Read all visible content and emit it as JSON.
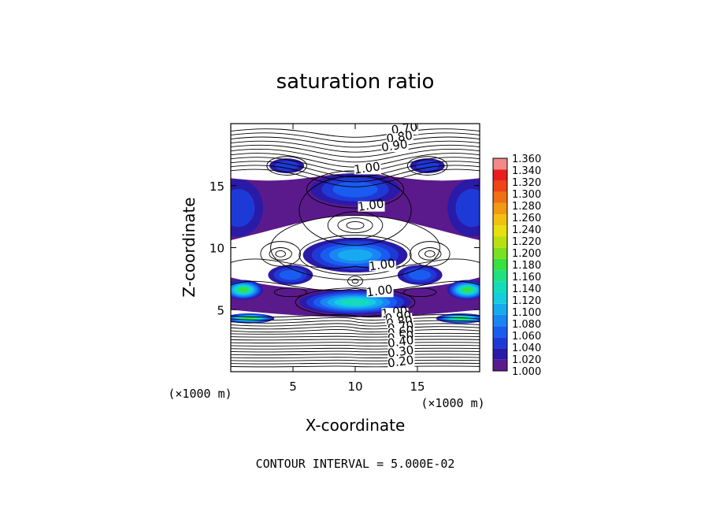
{
  "chart_data": {
    "type": "contour",
    "title": "saturation ratio",
    "xlabel": "X-coordinate",
    "ylabel": "Z-coordinate",
    "x_unit": "(×1000 m)",
    "y_unit": "(×1000 m)",
    "xlim": [
      0,
      20
    ],
    "ylim": [
      0,
      20
    ],
    "x_ticks": [
      5,
      10,
      15
    ],
    "y_ticks": [
      5,
      10,
      15
    ],
    "contour_interval_text": "CONTOUR INTERVAL = 5.000E-02",
    "colorbar": {
      "levels": [
        "1.000",
        "1.020",
        "1.040",
        "1.060",
        "1.080",
        "1.100",
        "1.120",
        "1.140",
        "1.160",
        "1.180",
        "1.200",
        "1.220",
        "1.240",
        "1.260",
        "1.280",
        "1.300",
        "1.320",
        "1.340",
        "1.360"
      ],
      "colors": [
        "#5a1a8c",
        "#2a1aa8",
        "#1e3ad6",
        "#1a5cf0",
        "#1a86f2",
        "#17aaf0",
        "#15cce0",
        "#15dcb8",
        "#20e080",
        "#38e040",
        "#7ae020",
        "#b8e010",
        "#e6e010",
        "#f2c010",
        "#f29a12",
        "#f07014",
        "#ee4416",
        "#e81e1e",
        "#f28a8a"
      ]
    },
    "contour_labels": [
      {
        "text": "0.70",
        "x": 14.0,
        "y": 19.3
      },
      {
        "text": "0.80",
        "x": 13.6,
        "y": 18.6
      },
      {
        "text": "0.90",
        "x": 13.2,
        "y": 17.9
      },
      {
        "text": "1.00",
        "x": 11.0,
        "y": 16.1
      },
      {
        "text": "1.00",
        "x": 11.3,
        "y": 13.1
      },
      {
        "text": "1.00",
        "x": 12.2,
        "y": 8.3
      },
      {
        "text": "1.00",
        "x": 12.0,
        "y": 6.2
      },
      {
        "text": "1.00",
        "x": 13.2,
        "y": 4.5
      },
      {
        "text": "0.90",
        "x": 13.5,
        "y": 4.1
      },
      {
        "text": "0.80",
        "x": 13.6,
        "y": 3.7
      },
      {
        "text": "0.70",
        "x": 13.7,
        "y": 3.3
      },
      {
        "text": "0.60",
        "x": 13.7,
        "y": 2.9
      },
      {
        "text": "0.50",
        "x": 13.7,
        "y": 2.5
      },
      {
        "text": "0.40",
        "x": 13.7,
        "y": 2.1
      },
      {
        "text": "0.30",
        "x": 13.7,
        "y": 1.3
      },
      {
        "text": "0.20",
        "x": 13.7,
        "y": 0.5
      }
    ],
    "filled_regions": [
      {
        "cx": 4.5,
        "cy": 16.6,
        "rx": 1.4,
        "ry": 0.6,
        "level": 1.04
      },
      {
        "cx": 15.8,
        "cy": 16.6,
        "rx": 1.4,
        "ry": 0.6,
        "level": 1.04
      },
      {
        "cx": 10.0,
        "cy": 14.7,
        "rx": 3.6,
        "ry": 1.3,
        "level": 1.06
      },
      {
        "cx": 0.6,
        "cy": 13.2,
        "rx": 2.0,
        "ry": 2.3,
        "level": 1.04
      },
      {
        "cx": 19.4,
        "cy": 13.2,
        "rx": 2.0,
        "ry": 2.3,
        "level": 1.04
      },
      {
        "cx": 10.0,
        "cy": 9.4,
        "rx": 4.2,
        "ry": 1.4,
        "level": 1.1
      },
      {
        "cx": 4.8,
        "cy": 7.8,
        "rx": 1.8,
        "ry": 0.8,
        "level": 1.06
      },
      {
        "cx": 15.2,
        "cy": 7.8,
        "rx": 1.8,
        "ry": 0.8,
        "level": 1.06
      },
      {
        "cx": 10.0,
        "cy": 5.6,
        "rx": 4.5,
        "ry": 1.0,
        "level": 1.14
      },
      {
        "cx": 1.0,
        "cy": 6.6,
        "rx": 1.6,
        "ry": 0.8,
        "level": 1.18
      },
      {
        "cx": 19.0,
        "cy": 6.6,
        "rx": 1.6,
        "ry": 0.8,
        "level": 1.18
      },
      {
        "cx": 1.5,
        "cy": 4.3,
        "rx": 2.0,
        "ry": 0.4,
        "level": 1.18
      },
      {
        "cx": 18.5,
        "cy": 4.3,
        "rx": 2.0,
        "ry": 0.4,
        "level": 1.18
      }
    ]
  }
}
